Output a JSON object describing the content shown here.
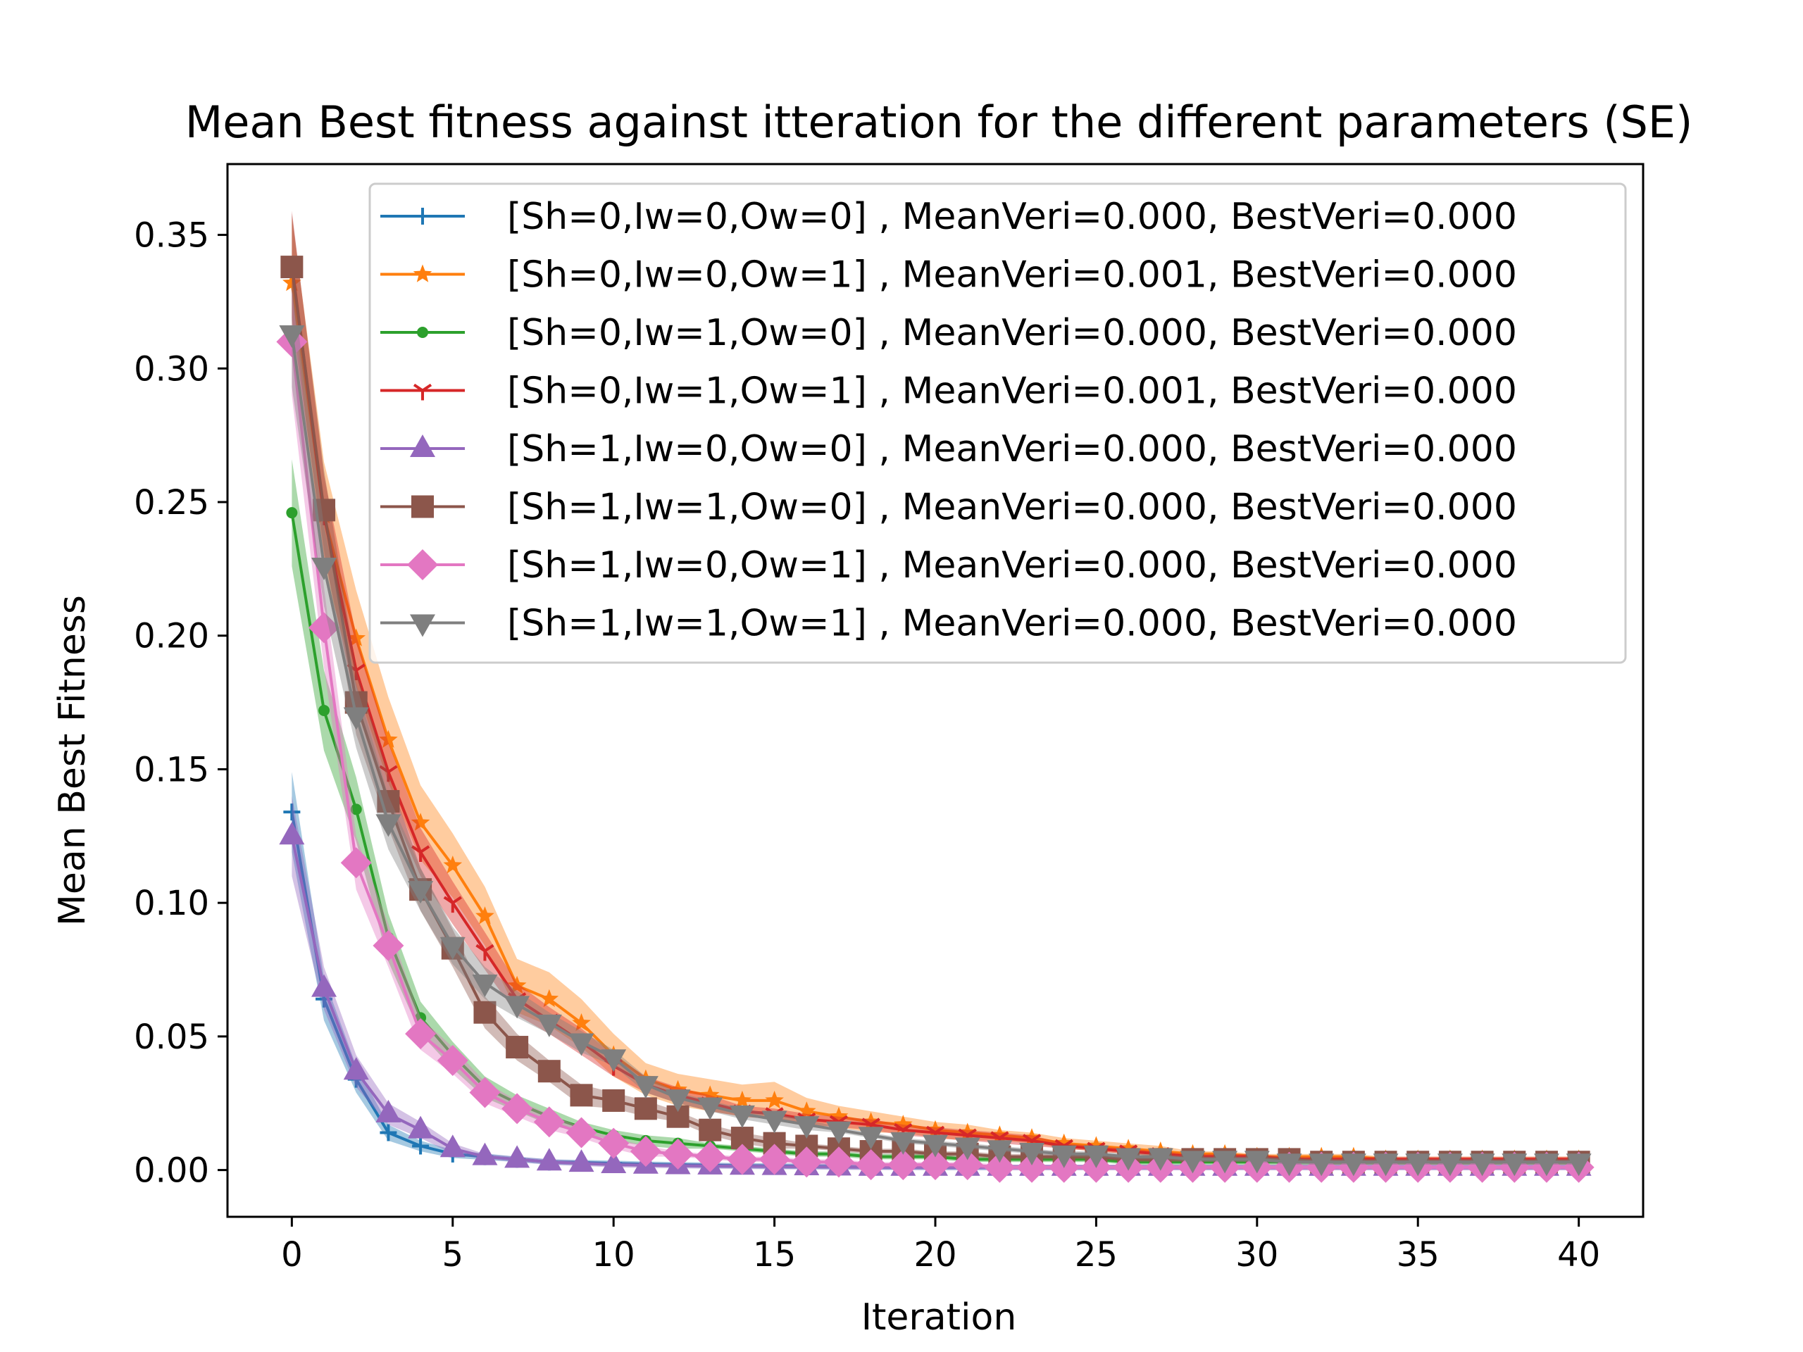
{
  "chart_data": {
    "type": "line",
    "title": "Mean Best fitness against itteration for the different parameters (SE)",
    "xlabel": "Iteration",
    "ylabel": "Mean Best Fitness",
    "xlim": [
      -2,
      42
    ],
    "ylim": [
      -0.0175,
      0.3765
    ],
    "xticks": [
      0,
      5,
      10,
      15,
      20,
      25,
      30,
      35,
      40
    ],
    "xtick_labels": [
      "0",
      "5",
      "10",
      "15",
      "20",
      "25",
      "30",
      "35",
      "40"
    ],
    "yticks": [
      0.0,
      0.05,
      0.1,
      0.15,
      0.2,
      0.25,
      0.3,
      0.35
    ],
    "ytick_labels": [
      "0.00",
      "0.05",
      "0.10",
      "0.15",
      "0.20",
      "0.25",
      "0.30",
      "0.35"
    ],
    "grid": false,
    "legend_position": "top-right",
    "shaded_band": "standard error",
    "x": [
      0,
      1,
      2,
      3,
      4,
      5,
      6,
      7,
      8,
      9,
      10,
      11,
      12,
      13,
      14,
      15,
      16,
      17,
      18,
      19,
      20,
      21,
      22,
      23,
      24,
      25,
      26,
      27,
      28,
      29,
      30,
      31,
      32,
      33,
      34,
      35,
      36,
      37,
      38,
      39,
      40
    ],
    "series": [
      {
        "name": "[Sh=0,Iw=0,Ow=0] , MeanVeri=0.000, BestVeri=0.000",
        "color": "#1f77b4",
        "marker": "plus",
        "values": [
          0.134,
          0.064,
          0.034,
          0.014,
          0.009,
          0.006,
          0.005,
          0.004,
          0.003,
          0.0028,
          0.0025,
          0.0022,
          0.002,
          0.0018,
          0.0016,
          0.0015,
          0.0014,
          0.0013,
          0.0012,
          0.0011,
          0.001,
          0.001,
          0.001,
          0.001,
          0.001,
          0.001,
          0.001,
          0.001,
          0.001,
          0.001,
          0.001,
          0.001,
          0.001,
          0.001,
          0.001,
          0.001,
          0.001,
          0.001,
          0.001,
          0.001,
          0.001
        ],
        "error": [
          0.015,
          0.008,
          0.005,
          0.003,
          0.002,
          0.0015,
          0.0012,
          0.001,
          0.001,
          0.001,
          0.001,
          0.001,
          0.001,
          0.001,
          0.001,
          0.001,
          0.001,
          0.001,
          0.001,
          0.001,
          0.001,
          0.001,
          0.001,
          0.001,
          0.001,
          0.001,
          0.001,
          0.001,
          0.001,
          0.001,
          0.001,
          0.001,
          0.001,
          0.001,
          0.001,
          0.001,
          0.001,
          0.001,
          0.001,
          0.001,
          0.001
        ]
      },
      {
        "name": "[Sh=0,Iw=0,Ow=1] , MeanVeri=0.001, BestVeri=0.000",
        "color": "#ff7f0e",
        "marker": "star",
        "values": [
          0.332,
          0.245,
          0.199,
          0.161,
          0.13,
          0.114,
          0.095,
          0.069,
          0.064,
          0.055,
          0.043,
          0.034,
          0.03,
          0.028,
          0.026,
          0.026,
          0.022,
          0.02,
          0.018,
          0.017,
          0.015,
          0.014,
          0.013,
          0.012,
          0.01,
          0.009,
          0.008,
          0.007,
          0.006,
          0.006,
          0.005,
          0.005,
          0.005,
          0.005,
          0.004,
          0.004,
          0.004,
          0.004,
          0.004,
          0.004,
          0.004
        ],
        "error": [
          0.025,
          0.02,
          0.018,
          0.016,
          0.014,
          0.012,
          0.011,
          0.01,
          0.01,
          0.009,
          0.008,
          0.006,
          0.006,
          0.006,
          0.006,
          0.007,
          0.005,
          0.004,
          0.004,
          0.003,
          0.003,
          0.003,
          0.002,
          0.002,
          0.002,
          0.002,
          0.002,
          0.002,
          0.001,
          0.001,
          0.001,
          0.001,
          0.001,
          0.001,
          0.001,
          0.001,
          0.001,
          0.001,
          0.001,
          0.001,
          0.001
        ]
      },
      {
        "name": "[Sh=0,Iw=1,Ow=0] , MeanVeri=0.000, BestVeri=0.000",
        "color": "#2ca02c",
        "marker": "point",
        "values": [
          0.246,
          0.172,
          0.135,
          0.087,
          0.057,
          0.043,
          0.031,
          0.025,
          0.02,
          0.016,
          0.013,
          0.011,
          0.01,
          0.009,
          0.008,
          0.007,
          0.006,
          0.006,
          0.005,
          0.005,
          0.005,
          0.004,
          0.004,
          0.004,
          0.004,
          0.004,
          0.003,
          0.003,
          0.003,
          0.003,
          0.003,
          0.003,
          0.003,
          0.003,
          0.003,
          0.003,
          0.003,
          0.003,
          0.003,
          0.003,
          0.003
        ],
        "error": [
          0.02,
          0.015,
          0.012,
          0.009,
          0.006,
          0.005,
          0.004,
          0.003,
          0.003,
          0.002,
          0.002,
          0.002,
          0.002,
          0.001,
          0.001,
          0.001,
          0.001,
          0.001,
          0.001,
          0.001,
          0.001,
          0.001,
          0.001,
          0.001,
          0.001,
          0.001,
          0.001,
          0.001,
          0.001,
          0.001,
          0.001,
          0.001,
          0.001,
          0.001,
          0.001,
          0.001,
          0.001,
          0.001,
          0.001,
          0.001,
          0.001
        ]
      },
      {
        "name": "[Sh=0,Iw=1,Ow=1] , MeanVeri=0.001, BestVeri=0.000",
        "color": "#d62728",
        "marker": "tri",
        "values": [
          0.339,
          0.245,
          0.187,
          0.149,
          0.119,
          0.1,
          0.082,
          0.064,
          0.056,
          0.048,
          0.039,
          0.032,
          0.028,
          0.025,
          0.022,
          0.021,
          0.019,
          0.018,
          0.017,
          0.015,
          0.014,
          0.013,
          0.012,
          0.011,
          0.009,
          0.008,
          0.007,
          0.006,
          0.005,
          0.005,
          0.005,
          0.004,
          0.004,
          0.004,
          0.004,
          0.004,
          0.004,
          0.004,
          0.004,
          0.004,
          0.004
        ],
        "error": [
          0.02,
          0.015,
          0.013,
          0.011,
          0.009,
          0.008,
          0.007,
          0.006,
          0.005,
          0.005,
          0.004,
          0.003,
          0.003,
          0.003,
          0.002,
          0.002,
          0.002,
          0.002,
          0.002,
          0.002,
          0.002,
          0.002,
          0.002,
          0.002,
          0.001,
          0.001,
          0.001,
          0.001,
          0.001,
          0.001,
          0.001,
          0.001,
          0.001,
          0.001,
          0.001,
          0.001,
          0.001,
          0.001,
          0.001,
          0.001,
          0.001
        ]
      },
      {
        "name": "[Sh=1,Iw=0,Ow=0] , MeanVeri=0.000, BestVeri=0.000",
        "color": "#9467bd",
        "marker": "triangle-up",
        "values": [
          0.125,
          0.068,
          0.037,
          0.021,
          0.015,
          0.008,
          0.005,
          0.004,
          0.003,
          0.0025,
          0.002,
          0.0018,
          0.0016,
          0.0015,
          0.0014,
          0.0013,
          0.0012,
          0.0011,
          0.001,
          0.001,
          0.001,
          0.001,
          0.001,
          0.001,
          0.001,
          0.001,
          0.001,
          0.001,
          0.001,
          0.001,
          0.001,
          0.001,
          0.001,
          0.001,
          0.001,
          0.001,
          0.001,
          0.001,
          0.001,
          0.001,
          0.001
        ],
        "error": [
          0.015,
          0.008,
          0.006,
          0.004,
          0.003,
          0.002,
          0.001,
          0.001,
          0.001,
          0.001,
          0.001,
          0.001,
          0.001,
          0.001,
          0.001,
          0.001,
          0.001,
          0.001,
          0.001,
          0.001,
          0.001,
          0.001,
          0.001,
          0.001,
          0.001,
          0.001,
          0.001,
          0.001,
          0.001,
          0.001,
          0.001,
          0.001,
          0.001,
          0.001,
          0.001,
          0.001,
          0.001,
          0.001,
          0.001,
          0.001,
          0.001
        ]
      },
      {
        "name": "[Sh=1,Iw=1,Ow=0] , MeanVeri=0.000, BestVeri=0.000",
        "color": "#8c564b",
        "marker": "square",
        "values": [
          0.338,
          0.247,
          0.175,
          0.138,
          0.105,
          0.083,
          0.059,
          0.046,
          0.037,
          0.028,
          0.026,
          0.023,
          0.02,
          0.015,
          0.012,
          0.01,
          0.009,
          0.008,
          0.007,
          0.007,
          0.006,
          0.006,
          0.005,
          0.005,
          0.005,
          0.005,
          0.004,
          0.004,
          0.004,
          0.004,
          0.004,
          0.004,
          0.003,
          0.003,
          0.003,
          0.003,
          0.003,
          0.003,
          0.003,
          0.003,
          0.003
        ],
        "error": [
          0.02,
          0.015,
          0.012,
          0.01,
          0.008,
          0.007,
          0.006,
          0.005,
          0.004,
          0.004,
          0.003,
          0.003,
          0.002,
          0.002,
          0.002,
          0.002,
          0.001,
          0.001,
          0.001,
          0.001,
          0.001,
          0.001,
          0.001,
          0.001,
          0.001,
          0.001,
          0.001,
          0.001,
          0.001,
          0.001,
          0.001,
          0.001,
          0.001,
          0.001,
          0.001,
          0.001,
          0.001,
          0.001,
          0.001,
          0.001,
          0.001
        ]
      },
      {
        "name": "[Sh=1,Iw=0,Ow=1] , MeanVeri=0.000, BestVeri=0.000",
        "color": "#e377c2",
        "marker": "diamond",
        "values": [
          0.31,
          0.203,
          0.115,
          0.084,
          0.051,
          0.041,
          0.029,
          0.023,
          0.018,
          0.014,
          0.01,
          0.007,
          0.006,
          0.005,
          0.004,
          0.004,
          0.003,
          0.003,
          0.002,
          0.002,
          0.002,
          0.002,
          0.001,
          0.001,
          0.001,
          0.001,
          0.001,
          0.001,
          0.001,
          0.001,
          0.001,
          0.001,
          0.001,
          0.001,
          0.001,
          0.001,
          0.001,
          0.001,
          0.001,
          0.001,
          0.001
        ],
        "error": [
          0.02,
          0.015,
          0.01,
          0.008,
          0.006,
          0.005,
          0.004,
          0.003,
          0.003,
          0.002,
          0.002,
          0.002,
          0.001,
          0.001,
          0.001,
          0.001,
          0.001,
          0.001,
          0.001,
          0.001,
          0.001,
          0.001,
          0.001,
          0.001,
          0.001,
          0.001,
          0.001,
          0.001,
          0.001,
          0.001,
          0.001,
          0.001,
          0.001,
          0.001,
          0.001,
          0.001,
          0.001,
          0.001,
          0.001,
          0.001,
          0.001
        ]
      },
      {
        "name": "[Sh=1,Iw=1,Ow=1] , MeanVeri=0.000, BestVeri=0.000",
        "color": "#7f7f7f",
        "marker": "triangle-down",
        "values": [
          0.313,
          0.226,
          0.17,
          0.13,
          0.105,
          0.084,
          0.07,
          0.062,
          0.055,
          0.048,
          0.042,
          0.032,
          0.027,
          0.024,
          0.021,
          0.019,
          0.017,
          0.015,
          0.013,
          0.011,
          0.01,
          0.009,
          0.008,
          0.007,
          0.006,
          0.006,
          0.005,
          0.005,
          0.004,
          0.004,
          0.004,
          0.003,
          0.003,
          0.003,
          0.003,
          0.003,
          0.003,
          0.003,
          0.003,
          0.003,
          0.003
        ],
        "error": [
          0.02,
          0.015,
          0.012,
          0.01,
          0.008,
          0.007,
          0.006,
          0.005,
          0.004,
          0.004,
          0.003,
          0.003,
          0.002,
          0.002,
          0.002,
          0.002,
          0.002,
          0.001,
          0.001,
          0.001,
          0.001,
          0.001,
          0.001,
          0.001,
          0.001,
          0.001,
          0.001,
          0.001,
          0.001,
          0.001,
          0.001,
          0.001,
          0.001,
          0.001,
          0.001,
          0.001,
          0.001,
          0.001,
          0.001,
          0.001,
          0.001
        ]
      }
    ]
  }
}
